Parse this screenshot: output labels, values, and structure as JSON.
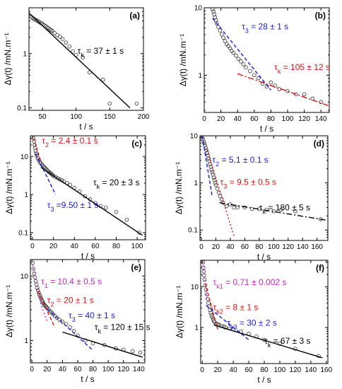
{
  "chart_data": [
    {
      "id": "a",
      "type": "scatter",
      "panel_label": "(a)",
      "xlabel": "t / s",
      "ylabel": "Δγ(t) /mN.m⁻¹",
      "xlim": [
        30,
        200
      ],
      "ylim": [
        0.09,
        7.0
      ],
      "yscale": "log",
      "xticks": [
        50,
        100,
        150,
        200
      ],
      "yticks": [
        0.1,
        1
      ],
      "points": [
        [
          33,
          4.8
        ],
        [
          35,
          4.6
        ],
        [
          37,
          4.4
        ],
        [
          39,
          4.25
        ],
        [
          41,
          4.1
        ],
        [
          43,
          4.0
        ],
        [
          45,
          3.85
        ],
        [
          47,
          3.7
        ],
        [
          49,
          3.6
        ],
        [
          51,
          3.45
        ],
        [
          53,
          3.3
        ],
        [
          55,
          3.2
        ],
        [
          57,
          3.05
        ],
        [
          59,
          2.95
        ],
        [
          61,
          2.8
        ],
        [
          63,
          2.7
        ],
        [
          65,
          2.6
        ],
        [
          68,
          2.4
        ],
        [
          72,
          2.2
        ],
        [
          76,
          2.05
        ],
        [
          80,
          1.85
        ],
        [
          85,
          1.6
        ],
        [
          90,
          1.35
        ],
        [
          95,
          1.1
        ],
        [
          100,
          0.95
        ],
        [
          110,
          0.85
        ],
        [
          120,
          0.45
        ],
        [
          140,
          0.33
        ],
        [
          150,
          0.12
        ],
        [
          190,
          0.12
        ]
      ],
      "fits": [
        {
          "color": "#000000",
          "dash": "solid",
          "points": [
            [
              30,
              5.6
            ],
            [
              180,
              0.1
            ]
          ]
        }
      ],
      "annotations": [
        {
          "text": "τk = 37 ± 1 s",
          "color": "#000000",
          "x": 102,
          "y": 1.0
        }
      ]
    },
    {
      "id": "b",
      "type": "scatter",
      "panel_label": "(b)",
      "xlabel": "t / s",
      "ylabel": "Δγ(t) /mN.m⁻¹",
      "xlim": [
        0,
        150
      ],
      "ylim": [
        0.28,
        10.0
      ],
      "yscale": "log",
      "xticks": [
        0,
        20,
        40,
        60,
        80,
        100,
        120,
        140
      ],
      "yticks": [
        1,
        10
      ],
      "points": [
        [
          10,
          9.5
        ],
        [
          11,
          8.8
        ],
        [
          12,
          8.0
        ],
        [
          13,
          7.2
        ],
        [
          14,
          6.5
        ],
        [
          15,
          5.9
        ],
        [
          17,
          5.2
        ],
        [
          19,
          4.6
        ],
        [
          21,
          4.0
        ],
        [
          23,
          3.6
        ],
        [
          25,
          3.2
        ],
        [
          27,
          2.9
        ],
        [
          29,
          2.7
        ],
        [
          31,
          2.5
        ],
        [
          33,
          2.3
        ],
        [
          35,
          2.15
        ],
        [
          38,
          1.95
        ],
        [
          41,
          1.75
        ],
        [
          44,
          1.6
        ],
        [
          47,
          1.45
        ],
        [
          50,
          1.3
        ],
        [
          55,
          1.15
        ],
        [
          60,
          1.0
        ],
        [
          65,
          0.9
        ],
        [
          70,
          0.75
        ],
        [
          75,
          0.68
        ],
        [
          80,
          0.78
        ],
        [
          85,
          0.7
        ],
        [
          90,
          0.62
        ],
        [
          100,
          0.58
        ],
        [
          110,
          0.52
        ],
        [
          120,
          0.52
        ],
        [
          130,
          0.45
        ],
        [
          140,
          0.4
        ]
      ],
      "fits": [
        {
          "color": "#1a1adf",
          "dash": "5,3",
          "points": [
            [
              10,
              7.0
            ],
            [
              80,
              0.6
            ]
          ]
        },
        {
          "color": "#e01010",
          "dash": "8,3,2,3",
          "points": [
            [
              40,
              1.05
            ],
            [
              150,
              0.35
            ]
          ]
        }
      ],
      "annotations": [
        {
          "text": "τ3 = 28 ± 1 s",
          "color": "#1a1adf",
          "x": 45,
          "y": 4.8
        },
        {
          "text": "τk = 105 ± 12 s",
          "color": "#e01010",
          "x": 84,
          "y": 1.2
        }
      ]
    },
    {
      "id": "c",
      "type": "scatter",
      "panel_label": "(c)",
      "xlabel": "t / s",
      "ylabel": "Δγ(t) /mN.m⁻¹",
      "xlim": [
        -2,
        108
      ],
      "ylim": [
        0.065,
        35.0
      ],
      "yscale": "log",
      "xticks": [
        0,
        20,
        40,
        60,
        80,
        100
      ],
      "yticks": [
        0.1,
        1,
        10
      ],
      "points": [
        [
          1,
          30
        ],
        [
          1.5,
          25
        ],
        [
          2,
          20
        ],
        [
          2.5,
          17
        ],
        [
          3,
          14
        ],
        [
          3.5,
          12
        ],
        [
          4,
          10.5
        ],
        [
          5,
          9
        ],
        [
          6,
          8
        ],
        [
          7,
          7.2
        ],
        [
          8,
          6.6
        ],
        [
          9,
          6.1
        ],
        [
          10,
          5.7
        ],
        [
          11,
          5.3
        ],
        [
          12,
          5.0
        ],
        [
          13,
          4.7
        ],
        [
          14,
          4.4
        ],
        [
          15,
          4.1
        ],
        [
          16,
          3.9
        ],
        [
          17,
          3.7
        ],
        [
          18,
          3.5
        ],
        [
          19,
          3.3
        ],
        [
          20,
          3.1
        ],
        [
          22,
          2.9
        ],
        [
          24,
          2.7
        ],
        [
          26,
          2.5
        ],
        [
          28,
          2.4
        ],
        [
          30,
          2.2
        ],
        [
          33,
          2.0
        ],
        [
          36,
          1.8
        ],
        [
          40,
          1.5
        ],
        [
          45,
          1.2
        ],
        [
          50,
          0.9
        ],
        [
          55,
          0.75
        ],
        [
          60,
          0.6
        ],
        [
          65,
          0.5
        ],
        [
          70,
          0.45
        ],
        [
          80,
          0.35
        ],
        [
          90,
          0.22
        ],
        [
          102,
          0.1
        ]
      ],
      "fits": [
        {
          "color": "#e01010",
          "dash": "4,3",
          "points": [
            [
              1,
              30
            ],
            [
              8,
              7.5
            ]
          ]
        },
        {
          "color": "#1a1adf",
          "dash": "5,3",
          "points": [
            [
              3,
              12
            ],
            [
              22,
              1.0
            ]
          ]
        },
        {
          "color": "#000000",
          "dash": "solid",
          "points": [
            [
              8,
              5.2
            ],
            [
              105,
              0.085
            ]
          ]
        }
      ],
      "annotations": [
        {
          "text": "τ2 = 2.4 ± 0.1 s",
          "color": "#e01010",
          "x": 9,
          "y": 22
        },
        {
          "text": "τk = 20 ± 3 s",
          "color": "#000000",
          "x": 58,
          "y": 1.75
        },
        {
          "text": "τ3 =9.50 ± 1 s",
          "color": "#1a1adf",
          "x": 14,
          "y": 0.45
        }
      ]
    },
    {
      "id": "d",
      "type": "scatter",
      "panel_label": "(d)",
      "xlabel": "t / s",
      "ylabel": "Δγ(t) /mN.m⁻¹",
      "xlim": [
        -2,
        175
      ],
      "ylim": [
        0.06,
        10.0
      ],
      "yscale": "log",
      "xticks": [
        0,
        20,
        40,
        60,
        80,
        100,
        120,
        140,
        160
      ],
      "yticks": [
        0.1,
        1,
        10
      ],
      "points": [
        [
          1,
          9.5
        ],
        [
          2,
          8.5
        ],
        [
          3,
          7.6
        ],
        [
          4,
          6.9
        ],
        [
          5,
          6.2
        ],
        [
          6,
          5.5
        ],
        [
          7,
          4.9
        ],
        [
          8,
          4.3
        ],
        [
          9,
          3.8
        ],
        [
          10,
          3.3
        ],
        [
          11,
          2.9
        ],
        [
          12,
          2.5
        ],
        [
          13,
          2.2
        ],
        [
          14,
          1.9
        ],
        [
          15,
          1.7
        ],
        [
          16,
          1.5
        ],
        [
          17,
          1.3
        ],
        [
          18,
          1.15
        ],
        [
          19,
          1.0
        ],
        [
          20,
          0.9
        ],
        [
          22,
          0.75
        ],
        [
          24,
          0.62
        ],
        [
          26,
          0.52
        ],
        [
          28,
          0.45
        ],
        [
          30,
          0.38
        ],
        [
          35,
          0.32
        ],
        [
          40,
          0.35
        ],
        [
          45,
          0.3
        ],
        [
          50,
          0.3
        ],
        [
          60,
          0.3
        ],
        [
          70,
          0.28
        ],
        [
          80,
          0.28
        ],
        [
          90,
          0.27
        ],
        [
          100,
          0.25
        ],
        [
          110,
          0.27
        ],
        [
          130,
          0.25
        ],
        [
          165,
          0.17
        ]
      ],
      "fits": [
        {
          "color": "#1a1adf",
          "dash": "5,3",
          "points": [
            [
              1,
              10
            ],
            [
              15,
              0.5
            ]
          ]
        },
        {
          "color": "#e01010",
          "dash": "2,3",
          "points": [
            [
              8,
              5
            ],
            [
              45,
              0.075
            ]
          ]
        },
        {
          "color": "#000000",
          "dash": "8,3,2,3",
          "points": [
            [
              25,
              0.38
            ],
            [
              175,
              0.16
            ]
          ]
        }
      ],
      "annotations": [
        {
          "text": "τ2 = 5.1 ± 0.1 s",
          "color": "#1a1adf",
          "x": 15,
          "y": 2.7
        },
        {
          "text": "τ3 = 9.5 ± 0.5 s",
          "color": "#e01010",
          "x": 26,
          "y": 0.9
        },
        {
          "text": "τk = 180 ± 5 s",
          "color": "#000000",
          "x": 80,
          "y": 0.26
        }
      ]
    },
    {
      "id": "e",
      "type": "scatter",
      "panel_label": "(e)",
      "xlabel": "t / s",
      "ylabel": "Δγ(t) /mN.m⁻¹",
      "xlim": [
        -2,
        148
      ],
      "ylim": [
        0.45,
        18.0
      ],
      "yscale": "log",
      "xticks": [
        0,
        20,
        40,
        60,
        80,
        100,
        120,
        140
      ],
      "yticks": [
        1,
        10
      ],
      "points": [
        [
          1,
          16
        ],
        [
          2,
          13
        ],
        [
          3,
          11
        ],
        [
          4,
          9.5
        ],
        [
          5,
          8.3
        ],
        [
          6,
          7.4
        ],
        [
          7,
          6.6
        ],
        [
          8,
          6.0
        ],
        [
          9,
          5.5
        ],
        [
          10,
          5.1
        ],
        [
          11,
          4.8
        ],
        [
          12,
          4.5
        ],
        [
          13,
          4.2
        ],
        [
          14,
          4.0
        ],
        [
          15,
          3.8
        ],
        [
          16,
          3.6
        ],
        [
          17,
          3.5
        ],
        [
          18,
          3.4
        ],
        [
          19,
          3.3
        ],
        [
          20,
          3.2
        ],
        [
          22,
          3.0
        ],
        [
          24,
          2.85
        ],
        [
          26,
          2.7
        ],
        [
          28,
          2.55
        ],
        [
          30,
          2.4
        ],
        [
          33,
          2.25
        ],
        [
          36,
          2.1
        ],
        [
          40,
          1.95
        ],
        [
          45,
          1.8
        ],
        [
          50,
          1.6
        ],
        [
          55,
          1.4
        ],
        [
          60,
          1.2
        ],
        [
          70,
          1.0
        ],
        [
          80,
          0.9
        ],
        [
          95,
          0.85
        ],
        [
          110,
          0.75
        ],
        [
          120,
          0.72
        ],
        [
          132,
          0.68
        ],
        [
          142,
          0.65
        ]
      ],
      "fits": [
        {
          "color": "#d020d0",
          "dash": "2,3",
          "points": [
            [
              1,
              15
            ],
            [
              12,
              3.5
            ],
            [
              20,
              2.0
            ]
          ]
        },
        {
          "color": "#e01010",
          "dash": "5,3",
          "points": [
            [
              8,
              5.8
            ],
            [
              30,
              1.6
            ]
          ]
        },
        {
          "color": "#1a1adf",
          "dash": "5,3",
          "points": [
            [
              20,
              3.1
            ],
            [
              80,
              0.7
            ]
          ]
        },
        {
          "color": "#000000",
          "dash": "solid",
          "points": [
            [
              40,
              1.35
            ],
            [
              145,
              0.55
            ]
          ]
        }
      ],
      "annotations": [
        {
          "text": "τ1 = 10.4 ± 0.5 s",
          "color": "#d020d0",
          "x": 12,
          "y": 7.4
        },
        {
          "text": "τ2 = 20 ± 1 s",
          "color": "#e01010",
          "x": 20,
          "y": 3.8
        },
        {
          "text": "τ3 = 40 ± 1 s",
          "color": "#1a1adf",
          "x": 48,
          "y": 2.2
        },
        {
          "text": "τk = 120 ± 15 s",
          "color": "#000000",
          "x": 82,
          "y": 1.45
        }
      ]
    },
    {
      "id": "f",
      "type": "scatter",
      "panel_label": "(f)",
      "xlabel": "t / s",
      "ylabel": "Δγ(t) /mN.m⁻¹",
      "xlim": [
        -2,
        162
      ],
      "ylim": [
        0.13,
        45.0
      ],
      "yscale": "log",
      "xticks": [
        0,
        20,
        40,
        60,
        80,
        100,
        120,
        140,
        160
      ],
      "yticks": [
        1,
        10
      ],
      "points": [
        [
          1,
          40
        ],
        [
          1.5,
          30
        ],
        [
          2,
          24
        ],
        [
          2.5,
          19
        ],
        [
          3,
          15
        ],
        [
          4,
          11
        ],
        [
          5,
          8.5
        ],
        [
          6,
          6.5
        ],
        [
          7,
          5.0
        ],
        [
          8,
          4.0
        ],
        [
          9,
          3.3
        ],
        [
          10,
          2.7
        ],
        [
          11,
          2.3
        ],
        [
          12,
          2.0
        ],
        [
          13,
          1.8
        ],
        [
          14,
          1.6
        ],
        [
          15,
          1.45
        ],
        [
          16,
          1.35
        ],
        [
          18,
          1.25
        ],
        [
          20,
          1.2
        ],
        [
          22,
          1.15
        ],
        [
          25,
          1.1
        ],
        [
          28,
          1.05
        ],
        [
          30,
          1.0
        ],
        [
          35,
          0.95
        ],
        [
          40,
          0.9
        ],
        [
          50,
          0.8
        ],
        [
          60,
          0.7
        ],
        [
          70,
          0.6
        ],
        [
          80,
          0.5
        ],
        [
          100,
          0.4
        ],
        [
          120,
          0.3
        ],
        [
          150,
          0.2
        ]
      ],
      "fits": [
        {
          "color": "#d020d0",
          "dash": "2,3",
          "points": [
            [
              1,
              40
            ],
            [
              6,
              5
            ]
          ]
        },
        {
          "color": "#e01010",
          "dash": "4,3",
          "points": [
            [
              4,
              12
            ],
            [
              20,
              0.9
            ]
          ]
        },
        {
          "color": "#1a1adf",
          "dash": "5,3",
          "points": [
            [
              5,
              3.5
            ],
            [
              60,
              0.5
            ]
          ]
        },
        {
          "color": "#000000",
          "dash": "solid",
          "points": [
            [
              15,
              1.15
            ],
            [
              155,
              0.18
            ]
          ]
        }
      ],
      "annotations": [
        {
          "text": "τk1 = 0.71 ± 0.002 s",
          "color": "#d020d0",
          "x": 14,
          "y": 11
        },
        {
          "text": "τk2 = 8 ± 1 s",
          "color": "#e01010",
          "x": 14,
          "y": 2.7
        },
        {
          "text": "τk3 = 30 ± 2 s",
          "color": "#1a1adf",
          "x": 32,
          "y": 1.1
        },
        {
          "text": "τk = 67 ± 3 s",
          "color": "#000000",
          "x": 80,
          "y": 0.4
        }
      ]
    }
  ]
}
